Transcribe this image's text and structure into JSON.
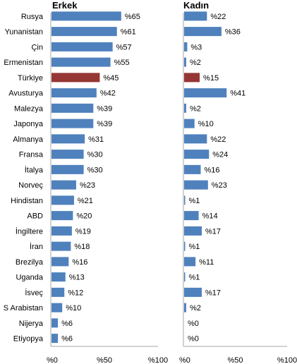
{
  "chart_data": [
    {
      "type": "bar",
      "orientation": "horizontal",
      "title": "Erkek",
      "categories": [
        "Rusya",
        "Yunanistan",
        "Çin",
        "Ermenistan",
        "Türkiye",
        "Avusturya",
        "Malezya",
        "Japonya",
        "Almanya",
        "Fransa",
        "İtalya",
        "Norveç",
        "Hindistan",
        "ABD",
        "İngiltere",
        "İran",
        "Brezilya",
        "Uganda",
        "İsveç",
        "S Arabistan",
        "Nijerya",
        "Etiyopya"
      ],
      "values": [
        65,
        61,
        57,
        55,
        45,
        42,
        39,
        39,
        31,
        30,
        30,
        23,
        21,
        20,
        19,
        18,
        16,
        13,
        12,
        10,
        6,
        6
      ],
      "value_labels": [
        "%65",
        "%61",
        "%57",
        "%55",
        "%45",
        "%42",
        "%39",
        "%39",
        "%31",
        "%30",
        "%30",
        "%23",
        "%21",
        "%20",
        "%19",
        "%18",
        "%16",
        "%13",
        "%12",
        "%10",
        "%6",
        "%6"
      ],
      "xlim": [
        0,
        100
      ],
      "ticks": [
        "%0",
        "%50",
        "%100"
      ],
      "tick_values": [
        0,
        50,
        100
      ],
      "grid": false,
      "highlight_index": 4
    },
    {
      "type": "bar",
      "orientation": "horizontal",
      "title": "Kadın",
      "categories": [
        "Rusya",
        "Yunanistan",
        "Çin",
        "Ermenistan",
        "Türkiye",
        "Avusturya",
        "Malezya",
        "Japonya",
        "Almanya",
        "Fransa",
        "İtalya",
        "Norveç",
        "Hindistan",
        "ABD",
        "İngiltere",
        "İran",
        "Brezilya",
        "Uganda",
        "İsveç",
        "S Arabistan",
        "Nijerya",
        "Etiyopya"
      ],
      "values": [
        22,
        36,
        3,
        2,
        15,
        41,
        2,
        10,
        22,
        24,
        16,
        23,
        1,
        14,
        17,
        1,
        11,
        1,
        17,
        2,
        0,
        0
      ],
      "value_labels": [
        "%22",
        "%36",
        "%3",
        "%2",
        "%15",
        "%41",
        "%2",
        "%10",
        "%22",
        "%24",
        "%16",
        "%23",
        "%1",
        "%14",
        "%17",
        "%1",
        "%11",
        "%1",
        "%17",
        "%2",
        "%0",
        "%0"
      ],
      "xlim": [
        0,
        100
      ],
      "ticks": [
        "%0",
        "%50",
        "%100"
      ],
      "tick_values": [
        0,
        50,
        100
      ],
      "grid": false,
      "highlight_index": 4
    }
  ],
  "colors": {
    "bar": "#4f81bd",
    "highlight": "#953735",
    "axis": "#a6a6a6",
    "text": "#000000"
  }
}
